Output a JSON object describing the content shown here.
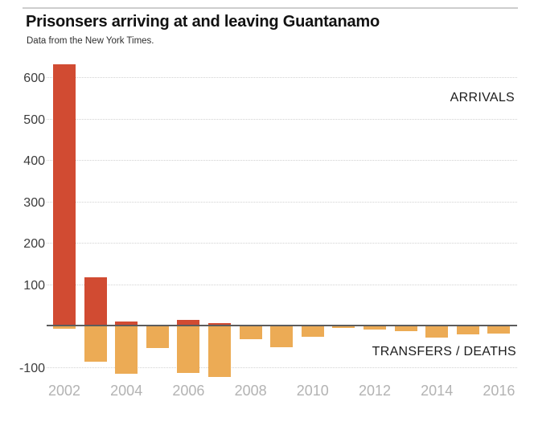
{
  "page": {
    "title": "Prisonsers arriving at and leaving Guantanamo",
    "subtitle": "Data from the New York Times."
  },
  "colors": {
    "arrivals_red": "#d14b32",
    "transfers_orange": "#ecab55",
    "zero_axis": "#5c5c5c",
    "gridline": "#d2d2d2",
    "y_tick_text": "#3c3c3c",
    "x_tick_text": "#b3b3b3",
    "top_rule": "#cdcdcd"
  },
  "chart_data": {
    "type": "bar",
    "title": "Prisonsers arriving at and leaving Guantanamo",
    "subtitle": "Data from the New York Times.",
    "categories": [
      "2002",
      "2003",
      "2004",
      "2005",
      "2006",
      "2007",
      "2008",
      "2009",
      "2010",
      "2011",
      "2012",
      "2013",
      "2014",
      "2015",
      "2016"
    ],
    "series": [
      {
        "name": "ARRIVALS",
        "color": "#d14b32",
        "values": [
          632,
          117,
          10,
          0,
          14,
          5,
          0,
          0,
          0,
          0,
          0,
          0,
          0,
          0,
          0
        ]
      },
      {
        "name": "TRANSFERS / DEATHS",
        "color": "#ecab55",
        "values": [
          -7,
          -88,
          -117,
          -55,
          -114,
          -125,
          -33,
          -52,
          -28,
          -5,
          -9,
          -14,
          -30,
          -22,
          -20
        ]
      }
    ],
    "y_ticks": [
      600,
      500,
      400,
      300,
      200,
      100,
      -100
    ],
    "x_tick_labels": [
      "2002",
      "2004",
      "2006",
      "2008",
      "2010",
      "2012",
      "2014",
      "2016"
    ],
    "ylim": [
      -131,
      663
    ],
    "grid": "horizontal-dotted",
    "legend_position": "inline-annotations-right",
    "annotations": [
      {
        "text": "ARRIVALS",
        "position": "upper-right"
      },
      {
        "text": "TRANSFERS / DEATHS",
        "position": "lower-right"
      }
    ]
  }
}
